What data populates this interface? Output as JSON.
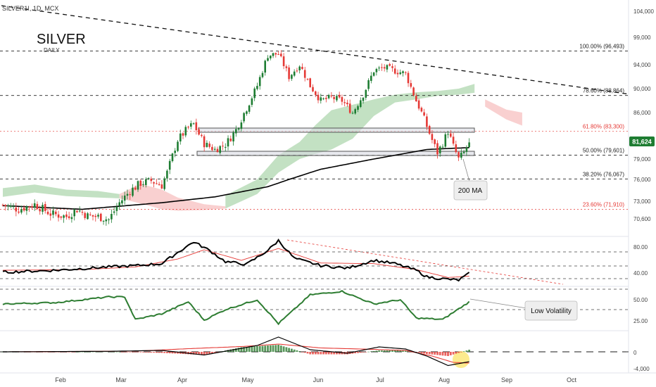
{
  "header": {
    "symbol_line": "SILVER1!, 1D, MCX",
    "title": "SILVER",
    "subtitle": "DAILY"
  },
  "colors": {
    "up": "#1e7d32",
    "down": "#e53935",
    "ma": "#000000",
    "cloud_bull": "#b9dcb9",
    "cloud_bear": "#f8c8c8",
    "rsi": "#000000",
    "rsi_signal": "#e53935",
    "vol": "#2e7d32",
    "macd": "#000000",
    "macd_signal": "#e53935",
    "price_badge": "#1e7d32"
  },
  "price_axis": {
    "ticks": [
      "104,000",
      "99,000",
      "94,000",
      "90,000",
      "86,000",
      "82,000",
      "79,000",
      "76,000",
      "73,000",
      "70,600"
    ],
    "current_price": "81,624"
  },
  "fib_levels": [
    {
      "label": "100.00% (96,493)",
      "value": 96493
    },
    {
      "label": "78.60% (88,864)",
      "value": 88864
    },
    {
      "label": "61.80% (83,300)",
      "value": 83300
    },
    {
      "label": "50.00% (79,601)",
      "value": 79601
    },
    {
      "label": "38.20% (76,067)",
      "value": 76067
    },
    {
      "label": "23.60% (71,910)",
      "value": 71910
    }
  ],
  "annotations": {
    "ma_label": "200 MA",
    "vol_label": "Low Volatility"
  },
  "rsi_axis": {
    "ticks": [
      "80.00",
      "40.00"
    ]
  },
  "vol_axis": {
    "ticks": [
      "50.00",
      "25.00"
    ]
  },
  "macd_axis": {
    "ticks": [
      "0",
      "-4,000"
    ]
  },
  "time_axis": {
    "labels": [
      "Feb",
      "Mar",
      "Apr",
      "May",
      "Jun",
      "Jul",
      "Aug",
      "Sep",
      "Oct"
    ]
  },
  "chart_data": {
    "type": "candlestick",
    "x_labels": [
      "Feb",
      "Mar",
      "Apr",
      "May",
      "Jun",
      "Jul",
      "Aug",
      "Sep",
      "Oct"
    ],
    "anchors": [
      [
        0,
        72500
      ],
      [
        6,
        71900
      ],
      [
        12,
        72600
      ],
      [
        18,
        71300
      ],
      [
        24,
        70900
      ],
      [
        28,
        71900
      ],
      [
        32,
        71000
      ],
      [
        36,
        70900
      ],
      [
        40,
        70500
      ],
      [
        44,
        72800
      ],
      [
        48,
        74400
      ],
      [
        52,
        75500
      ],
      [
        56,
        75800
      ],
      [
        60,
        75200
      ],
      [
        62,
        77000
      ],
      [
        66,
        82000
      ],
      [
        70,
        83800
      ],
      [
        72,
        84300
      ],
      [
        76,
        81400
      ],
      [
        80,
        80500
      ],
      [
        84,
        81300
      ],
      [
        88,
        83500
      ],
      [
        92,
        86700
      ],
      [
        96,
        90500
      ],
      [
        100,
        95700
      ],
      [
        104,
        96000
      ],
      [
        108,
        92000
      ],
      [
        112,
        94000
      ],
      [
        116,
        90500
      ],
      [
        120,
        88000
      ],
      [
        124,
        88500
      ],
      [
        128,
        88000
      ],
      [
        132,
        86000
      ],
      [
        136,
        89000
      ],
      [
        140,
        93000
      ],
      [
        144,
        93500
      ],
      [
        148,
        93000
      ],
      [
        152,
        92500
      ],
      [
        156,
        88000
      ],
      [
        160,
        84000
      ],
      [
        164,
        80000
      ],
      [
        166,
        81500
      ],
      [
        168,
        83300
      ],
      [
        170,
        81000
      ],
      [
        172,
        79000
      ],
      [
        174,
        80000
      ],
      [
        176,
        81624
      ]
    ],
    "ma200": [
      [
        0,
        72400
      ],
      [
        30,
        71900
      ],
      [
        60,
        72800
      ],
      [
        80,
        73600
      ],
      [
        100,
        75000
      ],
      [
        120,
        77500
      ],
      [
        140,
        79000
      ],
      [
        160,
        80500
      ],
      [
        170,
        80700
      ],
      [
        176,
        80800
      ]
    ],
    "cloud": [
      {
        "type": "bull",
        "upper": [
          [
            0,
            74800
          ],
          [
            12,
            75300
          ],
          [
            24,
            74600
          ],
          [
            36,
            74400
          ],
          [
            44,
            74000
          ]
        ],
        "lower": [
          [
            0,
            73600
          ],
          [
            12,
            74200
          ],
          [
            24,
            73700
          ],
          [
            36,
            73500
          ],
          [
            44,
            73400
          ]
        ]
      },
      {
        "type": "bear",
        "upper": [
          [
            44,
            74000
          ],
          [
            52,
            75400
          ],
          [
            60,
            74600
          ],
          [
            66,
            73500
          ],
          [
            76,
            72600
          ],
          [
            84,
            72300
          ]
        ],
        "lower": [
          [
            44,
            73400
          ],
          [
            52,
            72700
          ],
          [
            60,
            71900
          ],
          [
            66,
            71700
          ],
          [
            76,
            71800
          ],
          [
            84,
            72000
          ]
        ]
      },
      {
        "type": "bull",
        "upper": [
          [
            84,
            73800
          ],
          [
            96,
            76000
          ],
          [
            104,
            79600
          ],
          [
            112,
            81700
          ],
          [
            118,
            84200
          ],
          [
            124,
            86400
          ],
          [
            132,
            87300
          ],
          [
            140,
            88200
          ],
          [
            148,
            89000
          ],
          [
            156,
            89400
          ],
          [
            164,
            89600
          ],
          [
            172,
            90000
          ],
          [
            178,
            90800
          ]
        ],
        "lower": [
          [
            84,
            72000
          ],
          [
            96,
            74000
          ],
          [
            104,
            77000
          ],
          [
            112,
            79000
          ],
          [
            118,
            79800
          ],
          [
            124,
            80500
          ],
          [
            132,
            82200
          ],
          [
            140,
            85500
          ],
          [
            148,
            87700
          ],
          [
            156,
            88200
          ],
          [
            164,
            88800
          ],
          [
            172,
            89000
          ],
          [
            178,
            89300
          ]
        ]
      },
      {
        "type": "bear",
        "upper": [
          [
            182,
            88200
          ],
          [
            190,
            86500
          ],
          [
            196,
            86000
          ]
        ],
        "lower": [
          [
            182,
            87000
          ],
          [
            190,
            85000
          ],
          [
            196,
            84100
          ]
        ]
      }
    ],
    "rsi": [
      [
        0,
        42
      ],
      [
        20,
        45
      ],
      [
        40,
        50
      ],
      [
        50,
        52
      ],
      [
        60,
        55
      ],
      [
        66,
        72
      ],
      [
        72,
        88
      ],
      [
        78,
        75
      ],
      [
        84,
        58
      ],
      [
        92,
        54
      ],
      [
        100,
        75
      ],
      [
        104,
        90
      ],
      [
        110,
        63
      ],
      [
        120,
        52
      ],
      [
        130,
        48
      ],
      [
        140,
        60
      ],
      [
        148,
        55
      ],
      [
        156,
        45
      ],
      [
        160,
        35
      ],
      [
        166,
        32
      ],
      [
        172,
        30
      ],
      [
        176,
        40
      ]
    ],
    "rsi_signal": [
      [
        0,
        45
      ],
      [
        30,
        46
      ],
      [
        50,
        50
      ],
      [
        66,
        62
      ],
      [
        76,
        76
      ],
      [
        90,
        60
      ],
      [
        104,
        78
      ],
      [
        120,
        56
      ],
      [
        140,
        55
      ],
      [
        156,
        46
      ],
      [
        168,
        34
      ],
      [
        176,
        36
      ]
    ],
    "volatility": [
      [
        0,
        52
      ],
      [
        20,
        54
      ],
      [
        40,
        62
      ],
      [
        46,
        62
      ],
      [
        50,
        30
      ],
      [
        60,
        38
      ],
      [
        70,
        55
      ],
      [
        76,
        29
      ],
      [
        84,
        44
      ],
      [
        96,
        58
      ],
      [
        104,
        24
      ],
      [
        116,
        65
      ],
      [
        128,
        70
      ],
      [
        140,
        52
      ],
      [
        150,
        58
      ],
      [
        156,
        32
      ],
      [
        166,
        30
      ],
      [
        176,
        55
      ]
    ],
    "macd": [
      [
        0,
        0
      ],
      [
        40,
        150
      ],
      [
        60,
        400
      ],
      [
        76,
        -900
      ],
      [
        96,
        1800
      ],
      [
        104,
        4200
      ],
      [
        116,
        600
      ],
      [
        130,
        -400
      ],
      [
        142,
        1400
      ],
      [
        152,
        800
      ],
      [
        160,
        -1200
      ],
      [
        168,
        -3900
      ],
      [
        176,
        -2800
      ]
    ],
    "macd_signal": [
      [
        0,
        0
      ],
      [
        50,
        200
      ],
      [
        70,
        900
      ],
      [
        90,
        1500
      ],
      [
        104,
        2200
      ],
      [
        120,
        1100
      ],
      [
        140,
        700
      ],
      [
        152,
        400
      ],
      [
        162,
        -1200
      ],
      [
        170,
        -3000
      ],
      [
        176,
        -3200
      ]
    ],
    "macd_hist": [
      [
        0,
        20
      ],
      [
        20,
        -50
      ],
      [
        40,
        80
      ],
      [
        60,
        -300
      ],
      [
        76,
        -900
      ],
      [
        90,
        1300
      ],
      [
        104,
        2000
      ],
      [
        116,
        -700
      ],
      [
        130,
        -700
      ],
      [
        142,
        400
      ],
      [
        152,
        400
      ],
      [
        160,
        -600
      ],
      [
        168,
        -1200
      ],
      [
        176,
        600
      ]
    ]
  }
}
